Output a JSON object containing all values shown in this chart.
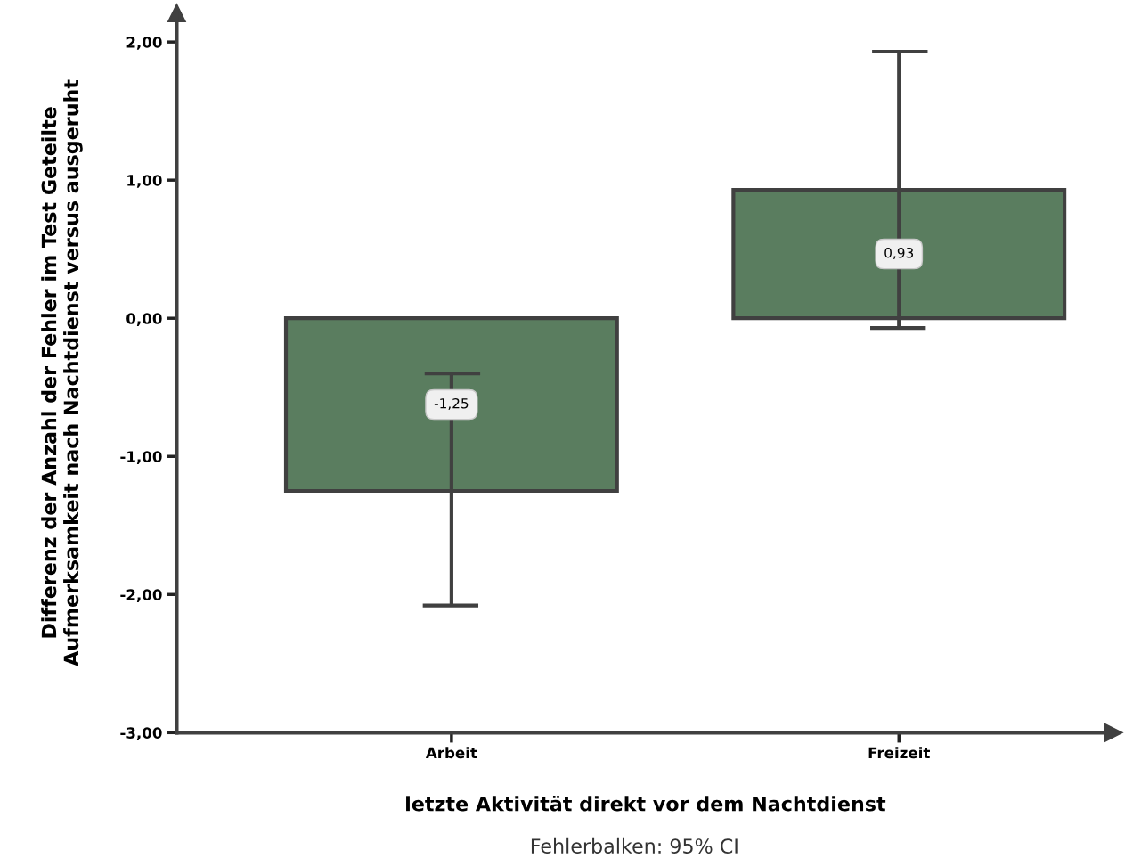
{
  "chart_data": {
    "type": "bar",
    "categories": [
      "Arbeit",
      "Freizeit"
    ],
    "values": [
      -1.25,
      0.93
    ],
    "errors": [
      [
        -2.08,
        -0.4
      ],
      [
        -0.07,
        1.93
      ]
    ],
    "value_labels": [
      "-1,25",
      "0,93"
    ],
    "color": "#5a7d5f",
    "ylim": [
      -3,
      2.21
    ],
    "yticks": [
      {
        "value": -3,
        "label": "-3,00"
      },
      {
        "value": -2,
        "label": "-2,00"
      },
      {
        "value": -1,
        "label": "-1,00"
      },
      {
        "value": 0,
        "label": "0,00"
      },
      {
        "value": 1,
        "label": "1,00"
      },
      {
        "value": 2,
        "label": "2,00"
      }
    ],
    "xlabel": "letzte Aktivität direkt vor dem Nachtdienst",
    "ylabel": "Differenz der Anzahl der Fehler im Test Geteilte\nAufmerksamkeit nach Nachtdienst versus ausgeruht",
    "annotations": [
      "Fehlerbalken: 95% CI"
    ]
  }
}
